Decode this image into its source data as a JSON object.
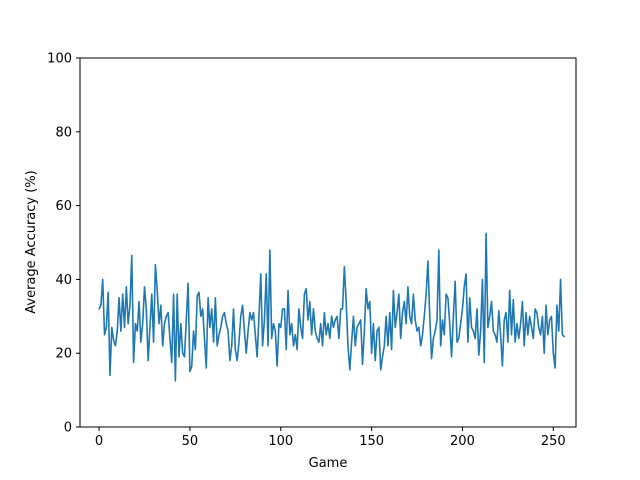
{
  "chart_data": {
    "type": "line",
    "title": "",
    "xlabel": "Game",
    "ylabel": "Average Accuracy (%)",
    "xlim": [
      -10.5,
      262.5
    ],
    "ylim": [
      0,
      100
    ],
    "x_ticks": [
      0,
      50,
      100,
      150,
      200,
      250
    ],
    "y_ticks": [
      0,
      20,
      40,
      60,
      80,
      100
    ],
    "grid": false,
    "legend": "none",
    "series": [
      {
        "color": "#1f77b4",
        "x_start": 0,
        "x_step": 1,
        "values": [
          32,
          33,
          40,
          25,
          27,
          36.5,
          14,
          27,
          23.5,
          22,
          26,
          35,
          26,
          36,
          27,
          38,
          28,
          33,
          46.5,
          17.5,
          28,
          26,
          34,
          23,
          28,
          38,
          32,
          18,
          27,
          36,
          23,
          44,
          37,
          28,
          33,
          22,
          28,
          30,
          31,
          24,
          17.5,
          36,
          12.5,
          36,
          19,
          28,
          20,
          19,
          29,
          39,
          15,
          16.5,
          26,
          21,
          35.5,
          36.5,
          30,
          32,
          24,
          16,
          35,
          27,
          32,
          23,
          35,
          22,
          25,
          27,
          30,
          31,
          28,
          26,
          18,
          22,
          32,
          21,
          18,
          23,
          30,
          33,
          26,
          20,
          26,
          31,
          29,
          31,
          25,
          19,
          30,
          41.5,
          22,
          29,
          41.5,
          22,
          48,
          24,
          28,
          26,
          16.5,
          28,
          27,
          32,
          32,
          21,
          37,
          25,
          28,
          22,
          25,
          21,
          32,
          27,
          24,
          36,
          37.5,
          29,
          34,
          25,
          32,
          26,
          24,
          23,
          28,
          22,
          31,
          25,
          28,
          24,
          30,
          27,
          29,
          30,
          24,
          32,
          32,
          43.5,
          34,
          22,
          15.5,
          23,
          30,
          22,
          27,
          28,
          29,
          17,
          26,
          37.5,
          32,
          34,
          20,
          28,
          18,
          26,
          27,
          15.5,
          19,
          22,
          30,
          22,
          31,
          21,
          37,
          27,
          31,
          36,
          24,
          31,
          34,
          28,
          38,
          30,
          28,
          36,
          29,
          26,
          27,
          22,
          25,
          30,
          36,
          45,
          30,
          18.5,
          24,
          26,
          29,
          48,
          22,
          29,
          25,
          36,
          35,
          28,
          19,
          30,
          39.5,
          23,
          24,
          28,
          32,
          38,
          41.5,
          23,
          35,
          27,
          26,
          24,
          32,
          19.5,
          26,
          40,
          17.5,
          52.5,
          27,
          30,
          34,
          26,
          25,
          23,
          31.5,
          25,
          16.5,
          29,
          31,
          23,
          37,
          25,
          34.5,
          23,
          28,
          24,
          28,
          34,
          22,
          31,
          25,
          30,
          27,
          24,
          32,
          31,
          27,
          25,
          30,
          20,
          33,
          25,
          29,
          30,
          20,
          16,
          33,
          26,
          40,
          25,
          24.5
        ]
      }
    ]
  }
}
